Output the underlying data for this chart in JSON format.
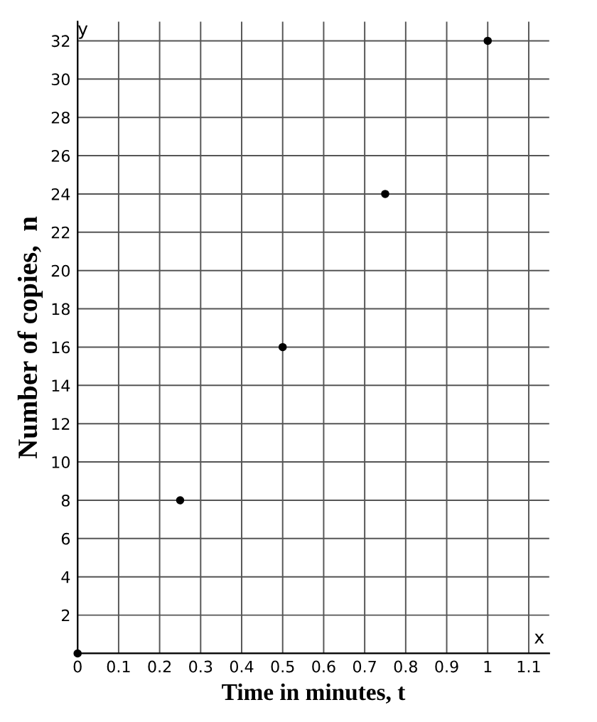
{
  "chart_data": {
    "type": "scatter",
    "xlabel": "Time in minutes, t",
    "ylabel": "Number of copies,  n",
    "x": [
      0,
      0.25,
      0.5,
      0.75,
      1
    ],
    "values": [
      0,
      8,
      16,
      24,
      32
    ],
    "color": "#000000",
    "marker": "circle",
    "grid": true,
    "xlim": [
      0,
      1.15
    ],
    "ylim": [
      0,
      33
    ],
    "xticks": [
      0,
      0.1,
      0.2,
      0.3,
      0.4,
      0.5,
      0.6,
      0.7,
      0.8,
      0.9,
      1,
      1.1
    ],
    "yticks": [
      {
        "value": 0,
        "label": null
      },
      2,
      4,
      6,
      8,
      10,
      12,
      14,
      16,
      18,
      20,
      22,
      24,
      26,
      28,
      30,
      32
    ],
    "annotations": [
      "x",
      "y"
    ]
  }
}
